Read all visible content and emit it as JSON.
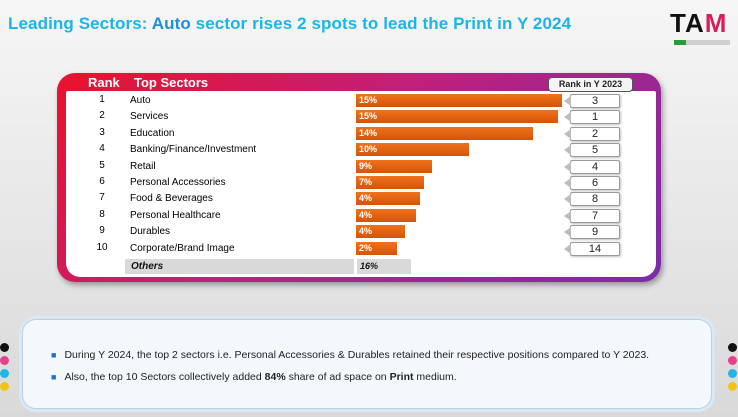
{
  "title": {
    "part1": "Leading Sectors: ",
    "part2": "Auto",
    "part3": " sector rises 2 spots to lead the Print in Y 2024"
  },
  "logo": {
    "text_main": "TA",
    "text_accent": "M"
  },
  "table": {
    "col_rank": "Rank",
    "col_sectors": "Top Sectors",
    "col_rank_2023": "Rank in Y 2023"
  },
  "chart_data": {
    "type": "bar",
    "categories": [
      "Auto",
      "Services",
      "Education",
      "Banking/Finance/Investment",
      "Retail",
      "Personal Accessories",
      "Food & Beverages",
      "Personal Healthcare",
      "Durables",
      "Corporate/Brand Image"
    ],
    "ranks": [
      "1",
      "2",
      "3",
      "4",
      "5",
      "6",
      "7",
      "8",
      "9",
      "10"
    ],
    "values": [
      15,
      15,
      14,
      10,
      9,
      7,
      4,
      4,
      4,
      2
    ],
    "value_labels": [
      "15%",
      "15%",
      "14%",
      "10%",
      "9%",
      "7%",
      "4%",
      "4%",
      "4%",
      "2%"
    ],
    "rank_2023": [
      "3",
      "1",
      "2",
      "5",
      "4",
      "6",
      "8",
      "7",
      "9",
      "14"
    ],
    "bar_values_relative": [
      1.0,
      0.98,
      0.86,
      0.55,
      0.37,
      0.33,
      0.31,
      0.29,
      0.24,
      0.2
    ],
    "others_label": "Others",
    "others_value": "16%"
  },
  "notes": [
    "During Y 2024, the top 2 sectors i.e. Personal Accessories & Durables retained their respective positions compared to Y 2023.",
    {
      "before": "Also, the top 10 Sectors collectively added ",
      "bold1": "84%",
      "middle": " share of ad space on ",
      "bold2": "Print",
      "after": " medium."
    }
  ],
  "colors": {
    "title": "#19b6e6",
    "bar": "#e0600f",
    "frame_start": "#e8132b",
    "frame_end": "#7a2ca8"
  }
}
